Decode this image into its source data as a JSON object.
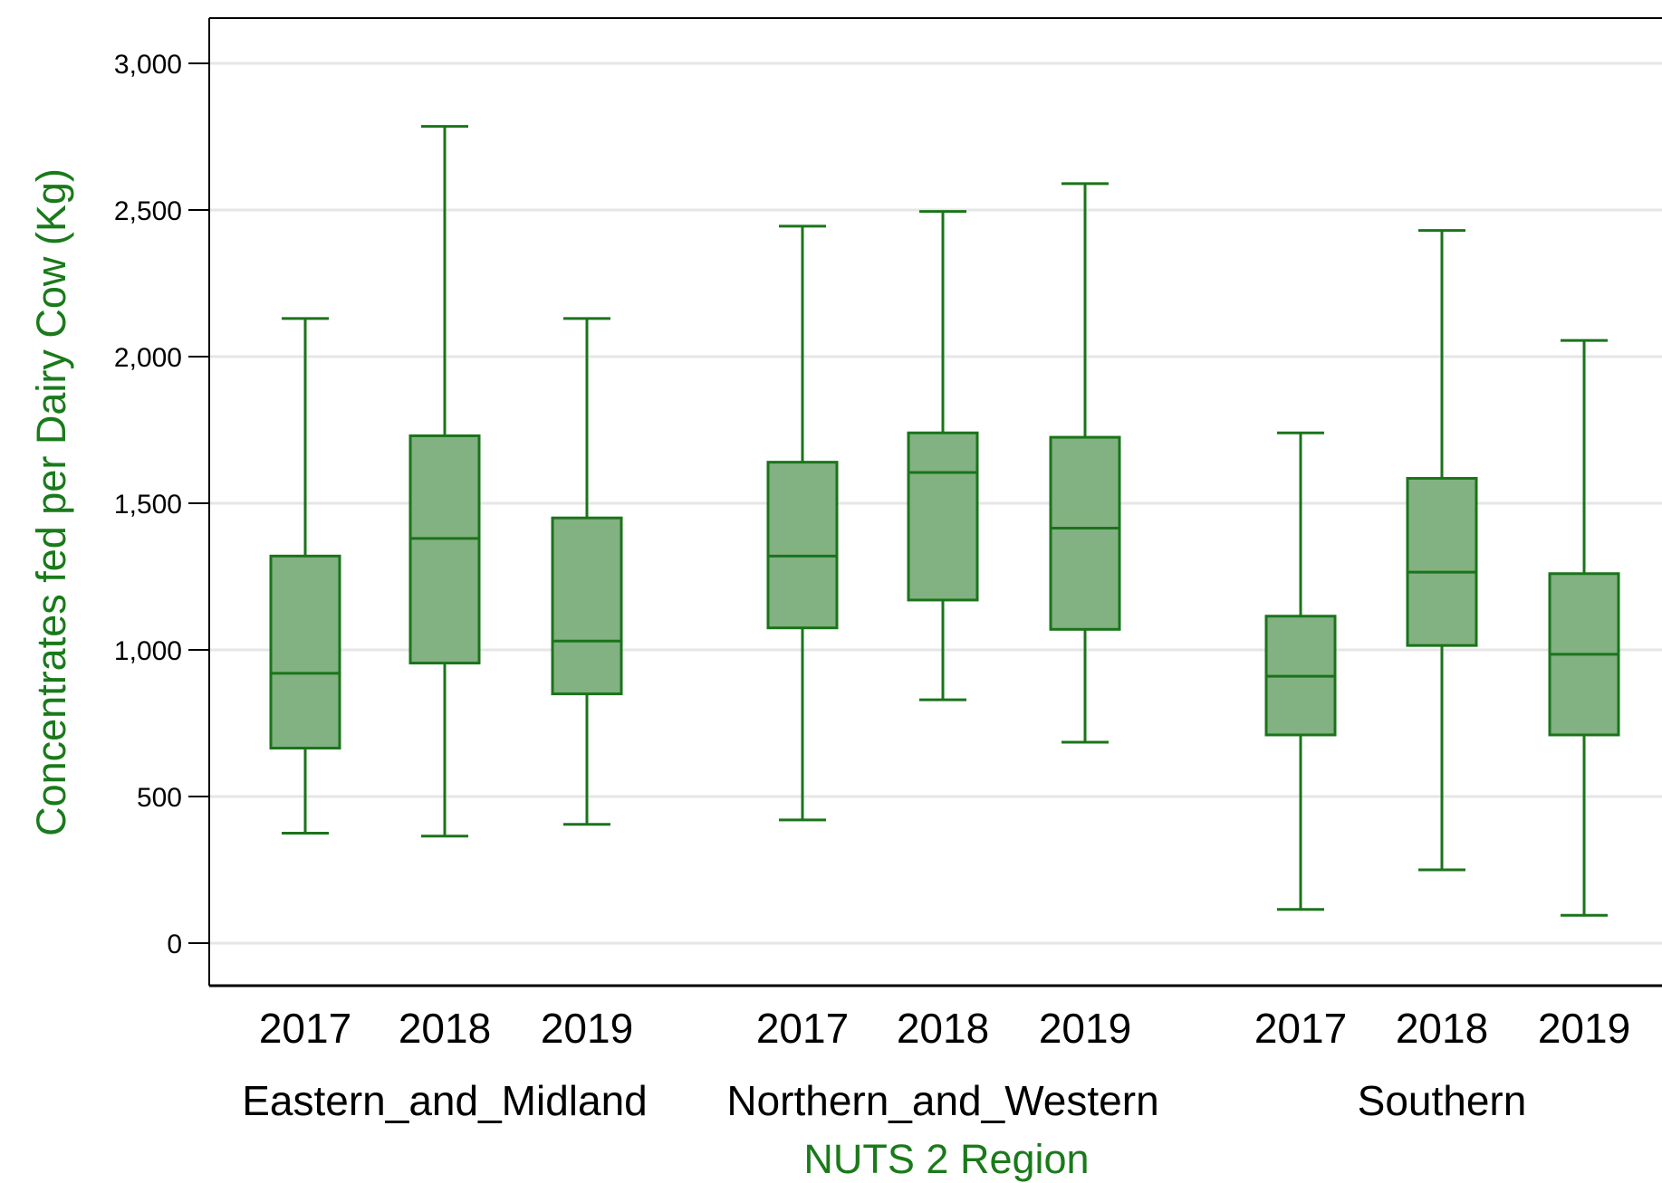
{
  "chart_data": {
    "type": "boxplot",
    "ylabel": "Concentrates fed per Dairy Cow (Kg)",
    "xlabel": "NUTS 2 Region",
    "y_ticks": [
      0,
      500,
      1000,
      1500,
      2000,
      2500,
      3000
    ],
    "y_tick_labels": [
      "0",
      "500",
      "1,000",
      "1,500",
      "2,000",
      "2,500",
      "3,000"
    ],
    "ylim": [
      -140,
      3160
    ],
    "grid": true,
    "colors": {
      "box_fill": "#82b182",
      "box_stroke": "#1a741a",
      "axis_title": "#1a7a1a",
      "grid": "#e6e6e6"
    },
    "groups": [
      {
        "name": "Eastern_and_Midland",
        "boxes": [
          {
            "category": "2017",
            "min": 375,
            "q1": 665,
            "median": 920,
            "q3": 1320,
            "max": 2130
          },
          {
            "category": "2018",
            "min": 365,
            "q1": 955,
            "median": 1380,
            "q3": 1730,
            "max": 2785
          },
          {
            "category": "2019",
            "min": 405,
            "q1": 850,
            "median": 1030,
            "q3": 1450,
            "max": 2130
          }
        ]
      },
      {
        "name": "Northern_and_Western",
        "boxes": [
          {
            "category": "2017",
            "min": 420,
            "q1": 1075,
            "median": 1320,
            "q3": 1640,
            "max": 2445
          },
          {
            "category": "2018",
            "min": 830,
            "q1": 1170,
            "median": 1605,
            "q3": 1740,
            "max": 2495
          },
          {
            "category": "2019",
            "min": 685,
            "q1": 1070,
            "median": 1415,
            "q3": 1725,
            "max": 2590
          }
        ]
      },
      {
        "name": "Southern",
        "boxes": [
          {
            "category": "2017",
            "min": 115,
            "q1": 710,
            "median": 910,
            "q3": 1115,
            "max": 1740
          },
          {
            "category": "2018",
            "min": 250,
            "q1": 1015,
            "median": 1265,
            "q3": 1585,
            "max": 2430
          },
          {
            "category": "2019",
            "min": 95,
            "q1": 710,
            "median": 985,
            "q3": 1260,
            "max": 2055
          }
        ]
      }
    ]
  }
}
